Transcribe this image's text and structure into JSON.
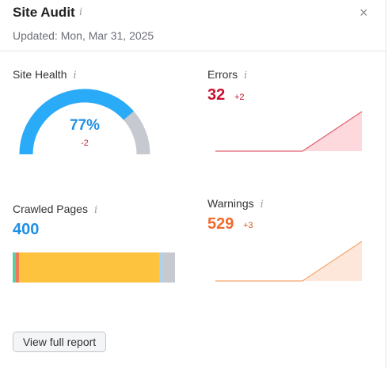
{
  "widget": {
    "title": "Site Audit",
    "info_glyph": "i",
    "updated": "Updated: Mon, Mar 31, 2025",
    "close_glyph": "×"
  },
  "site_health": {
    "label": "Site Health",
    "percent_text": "77%",
    "percent_value": 77,
    "delta": "-2",
    "colors": {
      "filled": "#2aabf8",
      "remaining": "#c7c9d0",
      "value_text": "#1f8fe6"
    }
  },
  "errors": {
    "label": "Errors",
    "value": "32",
    "delta": "+2",
    "color": "#c8102e",
    "fill_color": "#fdd8dc"
  },
  "crawled_pages": {
    "label": "Crawled Pages",
    "value": "400",
    "color": "#1f8fe6",
    "bar_segments": [
      {
        "name": "healthy",
        "color": "#58d1a0",
        "share": 0.02
      },
      {
        "name": "broken",
        "color": "#f07a55",
        "share": 0.02
      },
      {
        "name": "have-issues",
        "color": "#fdc33f",
        "share": 0.86
      },
      {
        "name": "redirects",
        "color": "#a9d3f2",
        "share": 0.02
      },
      {
        "name": "blocked",
        "color": "#c7c9d0",
        "share": 0.08
      }
    ]
  },
  "warnings": {
    "label": "Warnings",
    "value": "529",
    "delta": "+3",
    "color": "#f26a2c",
    "fill_color": "#fde7da"
  },
  "footer": {
    "button_label": "View full report"
  }
}
